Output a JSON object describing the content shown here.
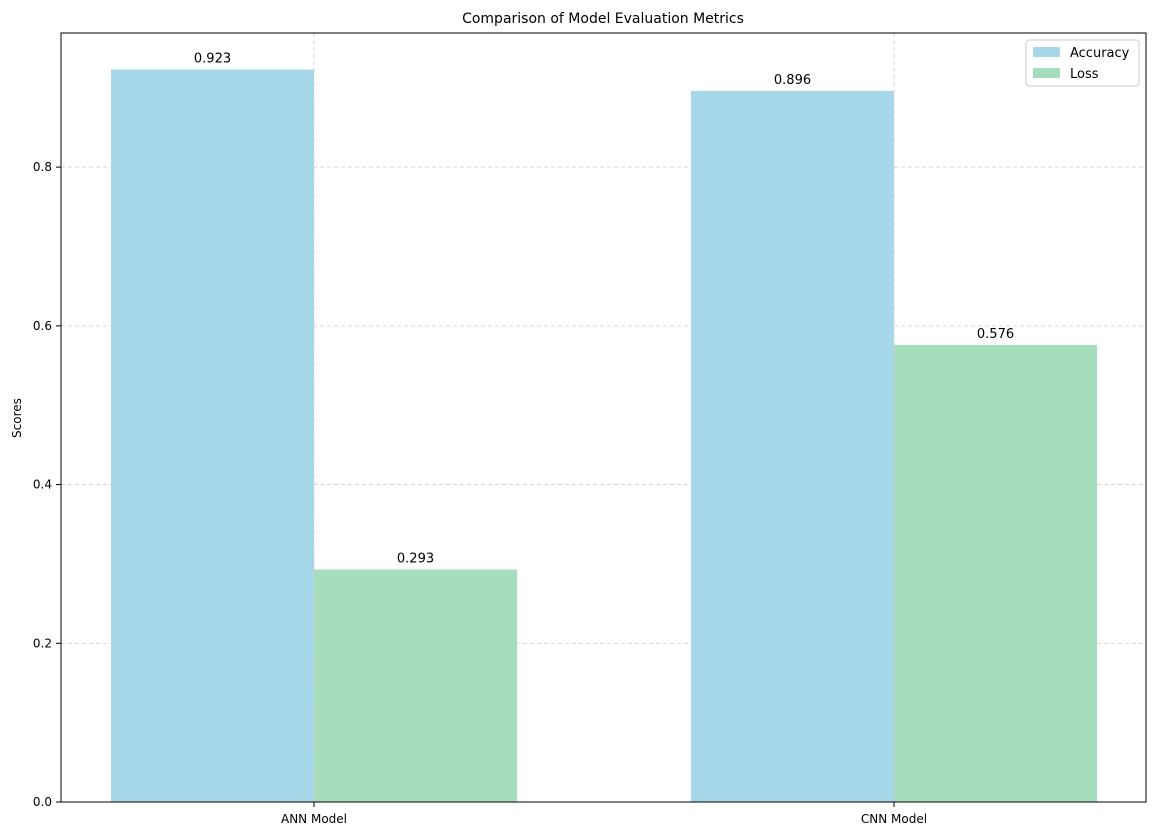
{
  "chart_data": {
    "type": "bar",
    "title": "Comparison of Model Evaluation Metrics",
    "xlabel": "",
    "ylabel": "Scores",
    "categories": [
      "ANN Model",
      "CNN Model"
    ],
    "series": [
      {
        "name": "Accuracy",
        "values": [
          0.923,
          0.896
        ],
        "color": "#a6d8ea"
      },
      {
        "name": "Loss",
        "values": [
          0.293,
          0.576
        ],
        "color": "#a5ddbd"
      }
    ],
    "data_labels": [
      [
        "0.923",
        "0.896"
      ],
      [
        "0.293",
        "0.576"
      ]
    ],
    "ylim": [
      0,
      0.969
    ],
    "yticks": [
      0.0,
      0.2,
      0.4,
      0.6,
      0.8
    ],
    "ytick_labels": [
      "0.0",
      "0.2",
      "0.4",
      "0.6",
      "0.8"
    ],
    "grid": true,
    "legend_position": "top-right"
  }
}
